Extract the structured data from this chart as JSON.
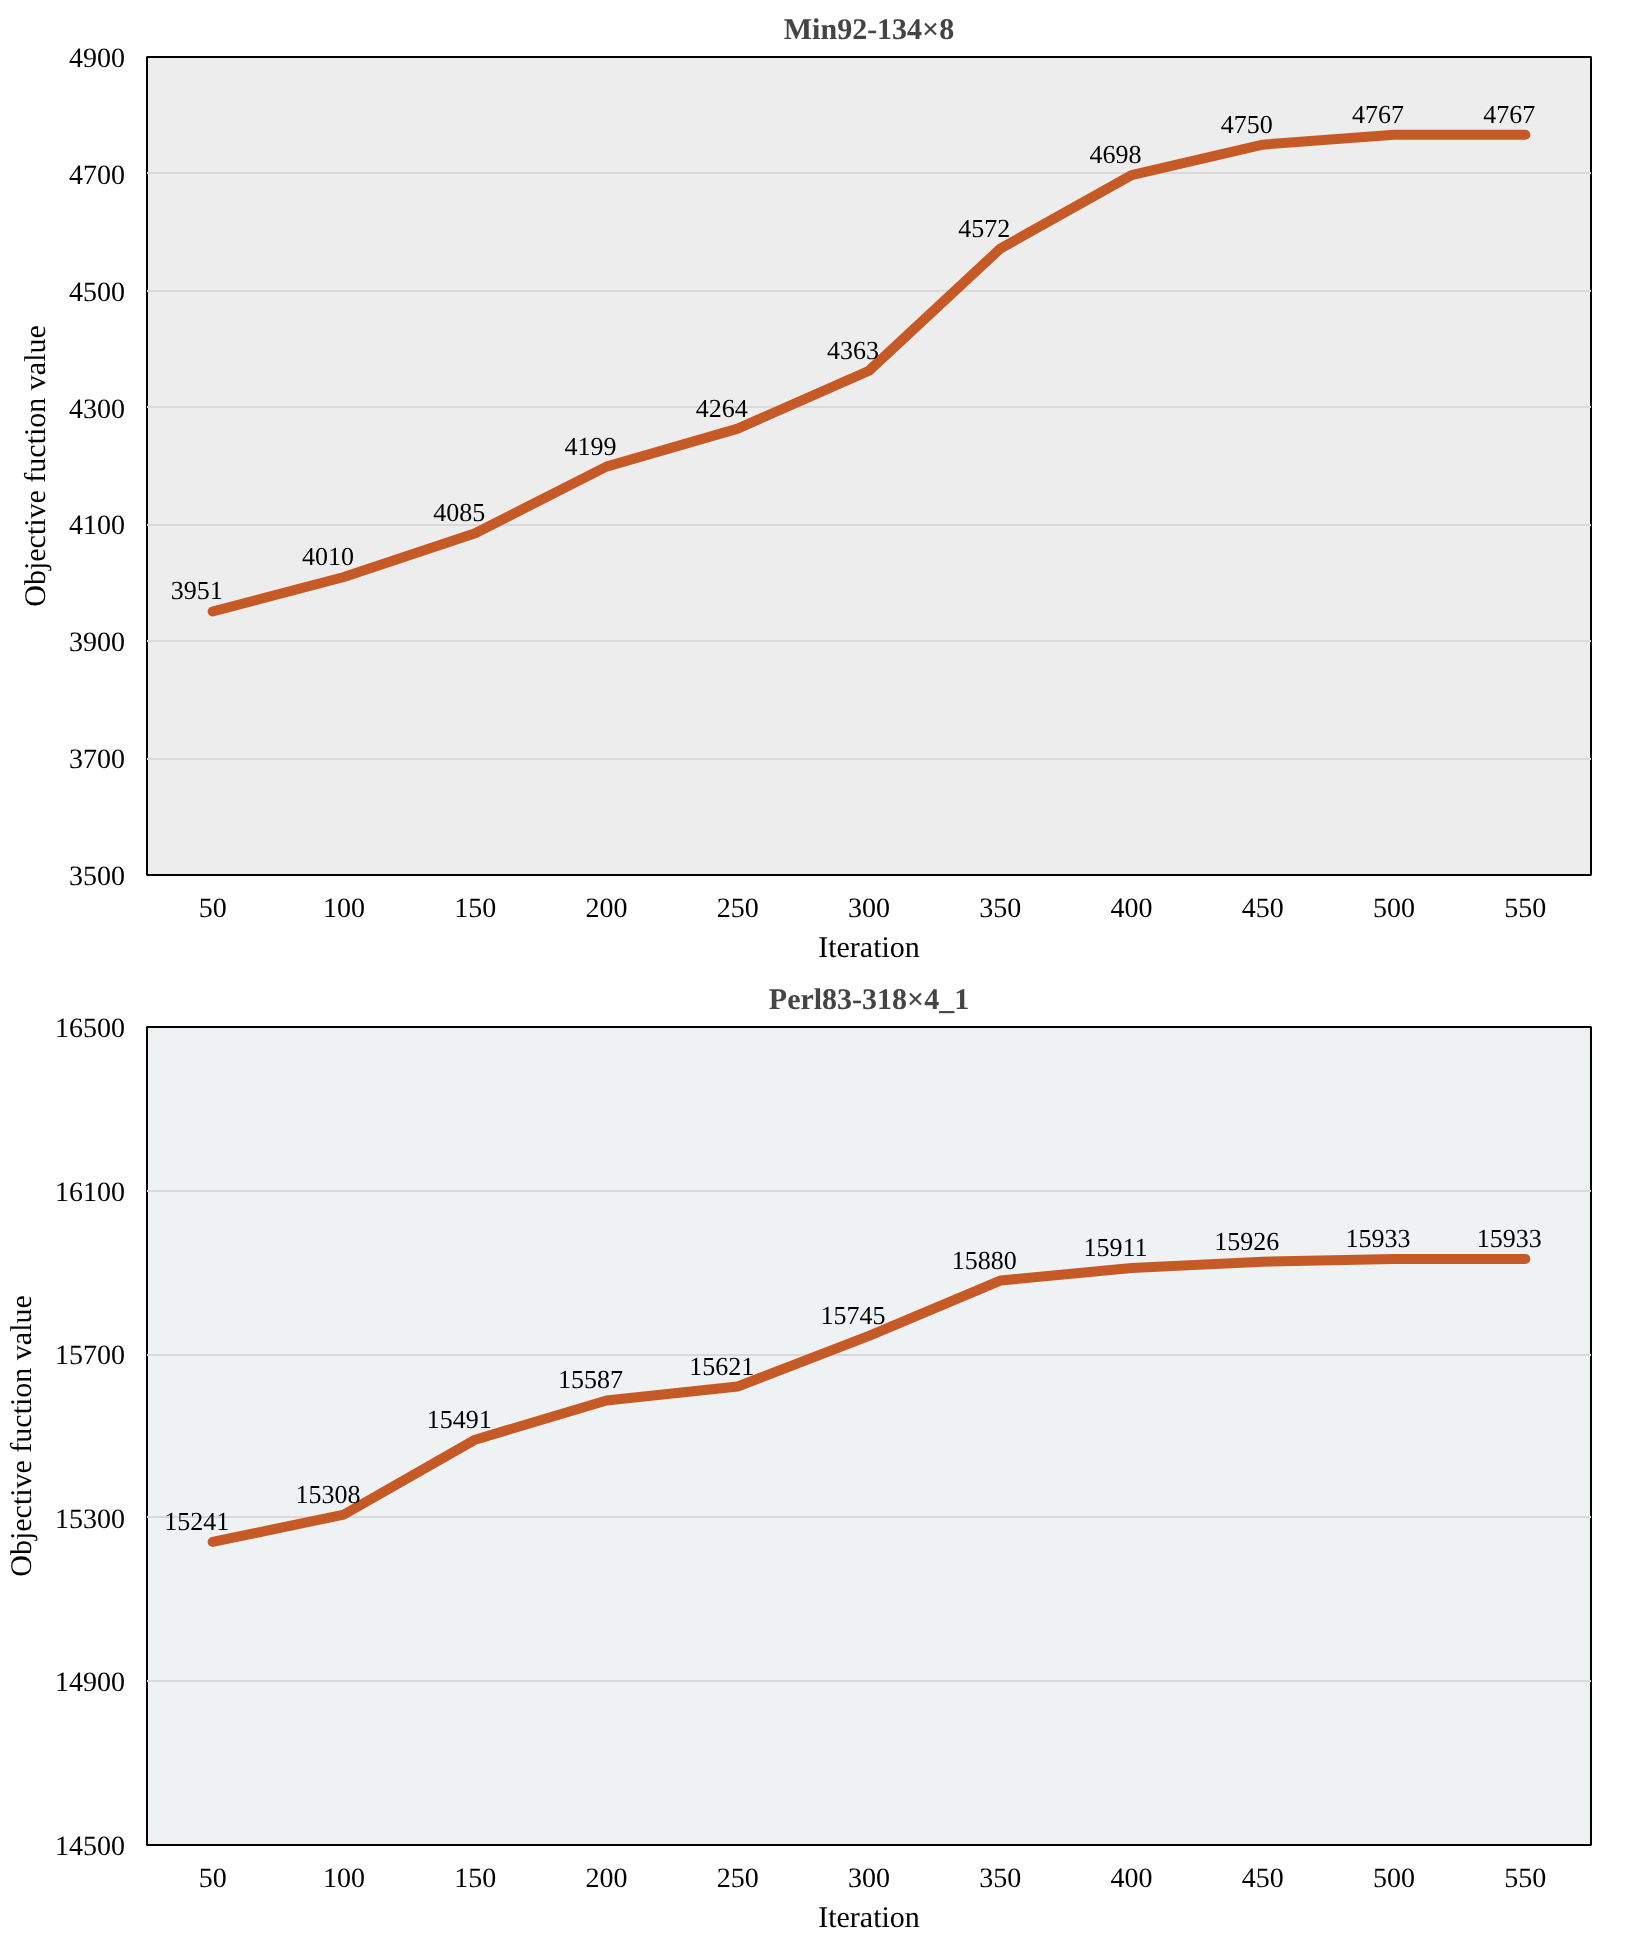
{
  "chart_data": [
    {
      "type": "line",
      "title": "Min92-134×8",
      "xlabel": "Iteration",
      "ylabel": "Objective fuction value",
      "categories": [
        "50",
        "100",
        "150",
        "200",
        "250",
        "300",
        "350",
        "400",
        "450",
        "500",
        "550"
      ],
      "series": [
        {
          "color": "#c65a27",
          "values": [
            3951,
            4010,
            4085,
            4199,
            4264,
            4363,
            4572,
            4698,
            4750,
            4767,
            4767
          ]
        }
      ],
      "ylim": [
        3500,
        4900
      ],
      "yticks": [
        3500,
        3700,
        3900,
        4100,
        4300,
        4500,
        4700,
        4900
      ],
      "grid": "y",
      "data_labels": true,
      "marker": "none",
      "line_style": "solid"
    },
    {
      "type": "line",
      "title": "Perl83-318×4_1",
      "xlabel": "Iteration",
      "ylabel": "Objective fuction value",
      "categories": [
        "50",
        "100",
        "150",
        "200",
        "250",
        "300",
        "350",
        "400",
        "450",
        "500",
        "550"
      ],
      "series": [
        {
          "color": "#c65a27",
          "values": [
            15241,
            15308,
            15491,
            15587,
            15621,
            15745,
            15880,
            15911,
            15926,
            15933,
            15933
          ]
        }
      ],
      "ylim": [
        14500,
        16500
      ],
      "yticks": [
        14500,
        14900,
        15300,
        15700,
        16100,
        16500
      ],
      "grid": "y",
      "data_labels": true,
      "marker": "none",
      "line_style": "solid"
    }
  ]
}
